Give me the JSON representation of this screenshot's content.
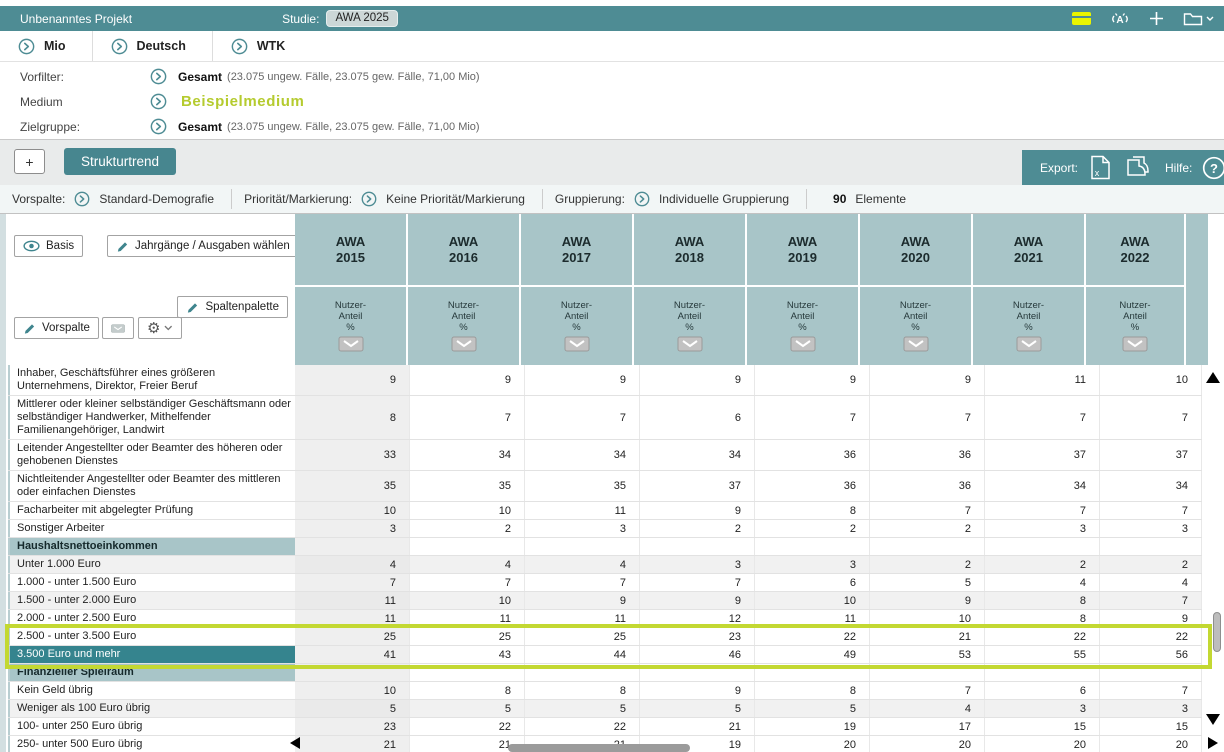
{
  "titlebar": {
    "project": "Unbenanntes Projekt",
    "studie_label": "Studie:",
    "studie_value": "AWA 2025"
  },
  "modes": [
    {
      "label": "Mio"
    },
    {
      "label": "Deutsch"
    },
    {
      "label": "WTK"
    }
  ],
  "filters": [
    {
      "label": "Vorfilter:",
      "value": "Gesamt",
      "detail": "(23.075 ungew. Fälle, 23.075 gew. Fälle, 71,00 Mio)"
    },
    {
      "label": "Medium",
      "value": "Beispielmedium",
      "detail": ""
    },
    {
      "label": "Zielgruppe:",
      "value": "Gesamt",
      "detail": "(23.075 ungew. Fälle, 23.075 gew. Fälle, 71,00 Mio)"
    }
  ],
  "toolbar": {
    "add_label": "+",
    "tab_label": "Strukturtrend",
    "export_label": "Export:",
    "hilfe_label": "Hilfe:"
  },
  "settingsbar": [
    {
      "label": "Vorspalte:",
      "value": "Standard-Demografie"
    },
    {
      "label": "Priorität/Markierung:",
      "value": "Keine Priorität/Markierung"
    },
    {
      "label": "Gruppierung:",
      "value": "Individuelle Gruppierung"
    }
  ],
  "elements": {
    "count": "90",
    "label": "Elemente"
  },
  "controls": {
    "basis": "Basis",
    "jahrgaenge": "Jahrgänge / Ausgaben wählen",
    "spaltenpalette": "Spaltenpalette",
    "vorspalte": "Vorspalte"
  },
  "icons": {
    "gear": "⚙",
    "gear_caret": "⌄",
    "topbar": [
      "notes-icon",
      "antenna-icon",
      "add-icon",
      "open-project-icon"
    ],
    "export": [
      "excel-export-icon",
      "copy-export-icon",
      "help-icon"
    ]
  },
  "colors": {
    "teal_dark": "#4e8c94",
    "teal_button": "#47868f",
    "teal_header_cell": "#a8c5c8",
    "teal_selected_row": "#35848e",
    "accent_green": "#c3d832",
    "accent_text_green": "#b5cb2f",
    "yellow_icon": "#e9f400"
  },
  "table": {
    "columns": [
      "AWA 2015",
      "AWA 2016",
      "AWA 2017",
      "AWA 2018",
      "AWA 2019",
      "AWA 2020",
      "AWA 2021",
      "AWA 2022"
    ],
    "subheader_lines": [
      "Nutzer-",
      "Anteil",
      "%"
    ],
    "rows": [
      {
        "label": "Inhaber, Geschäftsführer eines größeren Unternehmens, Direktor, Freier Beruf",
        "values": [
          9,
          9,
          9,
          9,
          9,
          9,
          11,
          10
        ]
      },
      {
        "label": "Mittlerer oder kleiner selbständiger Geschäftsmann oder selbständiger Handwerker, Mithelfender Familienangehöriger, Landwirt",
        "values": [
          8,
          7,
          7,
          6,
          7,
          7,
          7,
          7
        ]
      },
      {
        "label": "Leitender Angestellter oder Beamter des höheren oder gehobenen Dienstes",
        "values": [
          33,
          34,
          34,
          34,
          36,
          36,
          37,
          37
        ]
      },
      {
        "label": "Nichtleitender Angestellter oder Beamter des mittleren oder einfachen Dienstes",
        "values": [
          35,
          35,
          35,
          37,
          36,
          36,
          34,
          34
        ]
      },
      {
        "label": "Facharbeiter mit abgelegter Prüfung",
        "values": [
          10,
          10,
          11,
          9,
          8,
          7,
          7,
          7
        ]
      },
      {
        "label": "Sonstiger Arbeiter",
        "values": [
          3,
          2,
          3,
          2,
          2,
          2,
          3,
          3
        ]
      },
      {
        "type": "section",
        "label": "Haushaltsnettoeinkommen"
      },
      {
        "label": "Unter 1.000 Euro",
        "values": [
          4,
          4,
          4,
          3,
          3,
          2,
          2,
          2
        ],
        "shaded": true
      },
      {
        "label": "1.000 - unter 1.500 Euro",
        "values": [
          7,
          7,
          7,
          7,
          6,
          5,
          4,
          4
        ]
      },
      {
        "label": "1.500 - unter 2.000 Euro",
        "values": [
          11,
          10,
          9,
          9,
          10,
          9,
          8,
          7
        ],
        "shaded": true
      },
      {
        "label": "2.000 - unter 2.500 Euro",
        "values": [
          11,
          11,
          11,
          12,
          11,
          10,
          8,
          9
        ]
      },
      {
        "label": "2.500 - unter 3.500 Euro",
        "values": [
          25,
          25,
          25,
          23,
          22,
          21,
          22,
          22
        ],
        "highlight": true
      },
      {
        "label": "3.500 Euro und mehr",
        "values": [
          41,
          43,
          44,
          46,
          49,
          53,
          55,
          56
        ],
        "highlight": true,
        "selected": true
      },
      {
        "type": "section",
        "label": "Finanzieller Spielraum"
      },
      {
        "label": "Kein Geld übrig",
        "values": [
          10,
          8,
          8,
          9,
          8,
          7,
          6,
          7
        ]
      },
      {
        "label": "Weniger als 100 Euro übrig",
        "values": [
          5,
          5,
          5,
          5,
          5,
          4,
          3,
          3
        ],
        "shaded": true
      },
      {
        "label": "100- unter 250 Euro übrig",
        "values": [
          23,
          22,
          22,
          21,
          19,
          17,
          15,
          15
        ]
      },
      {
        "label": "250- unter 500 Euro übrig",
        "values": [
          21,
          21,
          21,
          19,
          20,
          20,
          20,
          20
        ]
      }
    ]
  }
}
